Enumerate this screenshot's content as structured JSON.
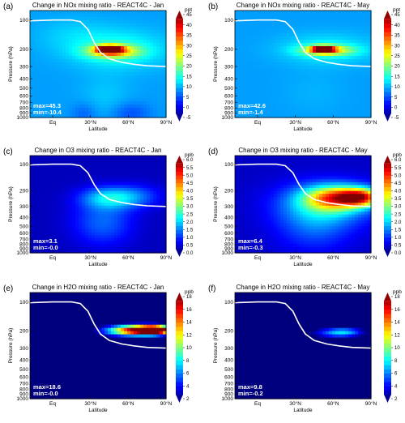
{
  "figure": {
    "panel_count": 6
  },
  "colormap": {
    "name": "jet",
    "stops": [
      "#00007f",
      "#0000ff",
      "#007fff",
      "#00ffff",
      "#7fff7f",
      "#ffff00",
      "#ff7f00",
      "#ff0000",
      "#7f0000"
    ]
  },
  "tropopause_color": "#ffffff",
  "chart_data": [
    {
      "type": "heatmap",
      "panel_label": "(a)",
      "title": "Change in NOx mixing ratio - REACT4C - Jan",
      "xlabel": "Latitude",
      "ylabel": "Pressure (hPa)",
      "xticks": [
        "Eq",
        "30°N",
        "60°N",
        "90°N"
      ],
      "xtick_values": [
        0,
        30,
        60,
        90
      ],
      "xlim": [
        -18,
        90
      ],
      "yticks": [
        "100",
        "200",
        "300",
        "400",
        "500",
        "600",
        "700",
        "800",
        "900",
        "1000"
      ],
      "ytick_values": [
        100,
        200,
        300,
        400,
        500,
        600,
        700,
        800,
        900,
        1000
      ],
      "ylim": [
        1000,
        80
      ],
      "yscale": "log",
      "colorbar": {
        "unit": "ppt",
        "ticks": [
          -5,
          0,
          5,
          10,
          15,
          20,
          25,
          30,
          35,
          40,
          45
        ],
        "range": [
          -5,
          45
        ]
      },
      "stats": {
        "max": "max=45.3",
        "min": "min=-10.4"
      },
      "tropopause": {
        "lat": [
          -18,
          0,
          15,
          22,
          28,
          33,
          38,
          45,
          55,
          65,
          75,
          90
        ],
        "pressure": [
          102,
          100,
          100,
          104,
          125,
          170,
          215,
          250,
          272,
          285,
          295,
          300
        ]
      },
      "background": 9,
      "features": [
        {
          "lat": 45,
          "pressure": 200,
          "lat_width": 9,
          "p_width": 0.08,
          "value": 45
        },
        {
          "lat": 48,
          "pressure": 210,
          "lat_width": 20,
          "p_width": 0.16,
          "value": 18
        },
        {
          "lat": 52,
          "pressure": 200,
          "lat_width": 38,
          "p_width": 0.45,
          "value": 6
        },
        {
          "lat": 42,
          "pressure": 600,
          "lat_width": 20,
          "p_width": 0.5,
          "value": 2
        },
        {
          "lat": 15,
          "pressure": 140,
          "lat_width": 30,
          "p_width": 0.4,
          "value": 2
        },
        {
          "lat": 62,
          "pressure": 900,
          "lat_width": 15,
          "p_width": 0.25,
          "value": -4
        },
        {
          "lat": 25,
          "pressure": 900,
          "lat_width": 10,
          "p_width": 0.25,
          "value": -3
        }
      ]
    },
    {
      "type": "heatmap",
      "panel_label": "(b)",
      "title": "Change in NOx mixing ratio - REACT4C - May",
      "xlabel": "Latitude",
      "ylabel": "Pressure (hPa)",
      "xticks": [
        "Eq",
        "30°N",
        "60°N",
        "90°N"
      ],
      "xtick_values": [
        0,
        30,
        60,
        90
      ],
      "xlim": [
        -18,
        90
      ],
      "yticks": [
        "100",
        "200",
        "300",
        "400",
        "500",
        "600",
        "700",
        "800",
        "900",
        "1000"
      ],
      "ytick_values": [
        100,
        200,
        300,
        400,
        500,
        600,
        700,
        800,
        900,
        1000
      ],
      "ylim": [
        1000,
        80
      ],
      "yscale": "log",
      "colorbar": {
        "unit": "ppt",
        "ticks": [
          -5,
          0,
          5,
          10,
          15,
          20,
          25,
          30,
          35,
          40,
          45
        ],
        "range": [
          -5,
          45
        ]
      },
      "stats": {
        "max": "max=42.6",
        "min": "min=-1.4"
      },
      "tropopause": {
        "lat": [
          -18,
          0,
          15,
          22,
          28,
          33,
          38,
          45,
          55,
          65,
          75,
          90
        ],
        "pressure": [
          102,
          100,
          100,
          104,
          125,
          170,
          215,
          250,
          272,
          285,
          295,
          300
        ]
      },
      "background": 9,
      "features": [
        {
          "lat": 52,
          "pressure": 200,
          "lat_width": 8,
          "p_width": 0.07,
          "value": 42
        },
        {
          "lat": 55,
          "pressure": 205,
          "lat_width": 20,
          "p_width": 0.12,
          "value": 17
        },
        {
          "lat": 55,
          "pressure": 200,
          "lat_width": 36,
          "p_width": 0.35,
          "value": 5
        },
        {
          "lat": 45,
          "pressure": 550,
          "lat_width": 25,
          "p_width": 0.5,
          "value": 1
        }
      ]
    },
    {
      "type": "heatmap",
      "panel_label": "(c)",
      "title": "Change in O3 mixing ratio - REACT4C - Jan",
      "xlabel": "Latitude",
      "ylabel": "Pressure (hPa)",
      "xticks": [
        "Eq",
        "30°N",
        "60°N",
        "90°N"
      ],
      "xtick_values": [
        0,
        30,
        60,
        90
      ],
      "xlim": [
        -18,
        90
      ],
      "yticks": [
        "100",
        "200",
        "300",
        "400",
        "500",
        "600",
        "700",
        "800",
        "900",
        "1000"
      ],
      "ytick_values": [
        100,
        200,
        300,
        400,
        500,
        600,
        700,
        800,
        900,
        1000
      ],
      "ylim": [
        1000,
        80
      ],
      "yscale": "log",
      "colorbar": {
        "unit": "ppb",
        "ticks": [
          0.0,
          0.5,
          1.0,
          1.5,
          2.0,
          2.5,
          3.0,
          3.5,
          4.0,
          4.5,
          5.0,
          5.5,
          6.0
        ],
        "range": [
          0,
          6
        ]
      },
      "stats": {
        "max": "max=3.1",
        "min": "min=-0.0"
      },
      "tropopause": {
        "lat": [
          -18,
          0,
          15,
          22,
          28,
          33,
          38,
          45,
          55,
          65,
          75,
          90
        ],
        "pressure": [
          102,
          100,
          100,
          104,
          125,
          170,
          215,
          250,
          272,
          285,
          295,
          300
        ]
      },
      "background": 0.35,
      "features": [
        {
          "lat": 45,
          "pressure": 240,
          "lat_width": 22,
          "p_width": 0.28,
          "value": 1.6
        },
        {
          "lat": 40,
          "pressure": 450,
          "lat_width": 24,
          "p_width": 0.6,
          "value": 1.0
        },
        {
          "lat": 68,
          "pressure": 230,
          "lat_width": 20,
          "p_width": 0.3,
          "value": 0.7
        }
      ]
    },
    {
      "type": "heatmap",
      "panel_label": "(d)",
      "title": "Change in O3 mixing ratio - REACT4C - May",
      "xlabel": "Latitude",
      "ylabel": "Pressure (hPa)",
      "xticks": [
        "Eq",
        "30°N",
        "60°N",
        "90°N"
      ],
      "xtick_values": [
        0,
        30,
        60,
        90
      ],
      "xlim": [
        -18,
        90
      ],
      "yticks": [
        "100",
        "200",
        "300",
        "400",
        "500",
        "600",
        "700",
        "800",
        "900",
        "1000"
      ],
      "ytick_values": [
        100,
        200,
        300,
        400,
        500,
        600,
        700,
        800,
        900,
        1000
      ],
      "ylim": [
        1000,
        80
      ],
      "yscale": "log",
      "colorbar": {
        "unit": "ppb",
        "ticks": [
          0.0,
          0.5,
          1.0,
          1.5,
          2.0,
          2.5,
          3.0,
          3.5,
          4.0,
          4.5,
          5.0,
          5.5,
          6.0
        ],
        "range": [
          0,
          6
        ]
      },
      "stats": {
        "max": "max=6.4",
        "min": "min=-0.3"
      },
      "tropopause": {
        "lat": [
          -18,
          0,
          15,
          22,
          28,
          33,
          38,
          45,
          55,
          65,
          75,
          90
        ],
        "pressure": [
          102,
          100,
          100,
          104,
          125,
          170,
          215,
          250,
          272,
          285,
          295,
          300
        ]
      },
      "background": 0.4,
      "features": [
        {
          "lat": 82,
          "pressure": 235,
          "lat_width": 16,
          "p_width": 0.22,
          "value": 3.5
        },
        {
          "lat": 62,
          "pressure": 240,
          "lat_width": 24,
          "p_width": 0.3,
          "value": 3.2
        },
        {
          "lat": 55,
          "pressure": 280,
          "lat_width": 38,
          "p_width": 0.55,
          "value": 1.5
        },
        {
          "lat": 45,
          "pressure": 500,
          "lat_width": 30,
          "p_width": 0.7,
          "value": 0.8
        }
      ]
    },
    {
      "type": "heatmap",
      "panel_label": "(e)",
      "title": "Change in H2O mixing ratio - REACT4C - Jan",
      "xlabel": "Latitude",
      "ylabel": "Pressure (hPa)",
      "xticks": [
        "Eq",
        "30°N",
        "60°N",
        "90°N"
      ],
      "xtick_values": [
        0,
        30,
        60,
        90
      ],
      "xlim": [
        -18,
        90
      ],
      "yticks": [
        "100",
        "200",
        "300",
        "400",
        "500",
        "600",
        "700",
        "800",
        "900",
        "1000"
      ],
      "ytick_values": [
        100,
        200,
        300,
        400,
        500,
        600,
        700,
        800,
        900,
        1000
      ],
      "ylim": [
        1000,
        80
      ],
      "yscale": "log",
      "colorbar": {
        "unit": "ppb",
        "ticks": [
          2,
          4,
          6,
          8,
          10,
          12,
          14,
          16,
          18
        ],
        "range": [
          2,
          18
        ]
      },
      "stats": {
        "max": "max=18.6",
        "min": "min=-0.0"
      },
      "tropopause": {
        "lat": [
          -18,
          0,
          15,
          22,
          28,
          33,
          38,
          45,
          55,
          65,
          75,
          90
        ],
        "pressure": [
          102,
          100,
          100,
          104,
          125,
          170,
          215,
          250,
          272,
          285,
          295,
          300
        ]
      },
      "background": 0,
      "features": [
        {
          "lat": 82,
          "pressure": 195,
          "lat_width": 12,
          "p_width": 0.1,
          "value": 16
        },
        {
          "lat": 70,
          "pressure": 195,
          "lat_width": 20,
          "p_width": 0.12,
          "value": 12
        },
        {
          "lat": 60,
          "pressure": 200,
          "lat_width": 25,
          "p_width": 0.14,
          "value": 7
        }
      ]
    },
    {
      "type": "heatmap",
      "panel_label": "(f)",
      "title": "Change in H2O mixing ratio - REACT4C - May",
      "xlabel": "Latitude",
      "ylabel": "Pressure (hPa)",
      "xticks": [
        "Eq",
        "30°N",
        "60°N",
        "90°N"
      ],
      "xtick_values": [
        0,
        30,
        60,
        90
      ],
      "xlim": [
        -18,
        90
      ],
      "yticks": [
        "100",
        "200",
        "300",
        "400",
        "500",
        "600",
        "700",
        "800",
        "900",
        "1000"
      ],
      "ytick_values": [
        100,
        200,
        300,
        400,
        500,
        600,
        700,
        800,
        900,
        1000
      ],
      "ylim": [
        1000,
        80
      ],
      "yscale": "log",
      "colorbar": {
        "unit": "ppb",
        "ticks": [
          2,
          4,
          6,
          8,
          10,
          12,
          14,
          16,
          18
        ],
        "range": [
          2,
          18
        ]
      },
      "stats": {
        "max": "max=9.8",
        "min": "min=-0.2"
      },
      "tropopause": {
        "lat": [
          -18,
          0,
          15,
          22,
          28,
          33,
          38,
          45,
          55,
          65,
          75,
          90
        ],
        "pressure": [
          102,
          100,
          100,
          104,
          125,
          170,
          215,
          250,
          272,
          285,
          295,
          300
        ]
      },
      "background": 0,
      "features": [
        {
          "lat": 70,
          "pressure": 205,
          "lat_width": 16,
          "p_width": 0.12,
          "value": 5
        },
        {
          "lat": 58,
          "pressure": 210,
          "lat_width": 20,
          "p_width": 0.13,
          "value": 3.5
        }
      ]
    }
  ]
}
